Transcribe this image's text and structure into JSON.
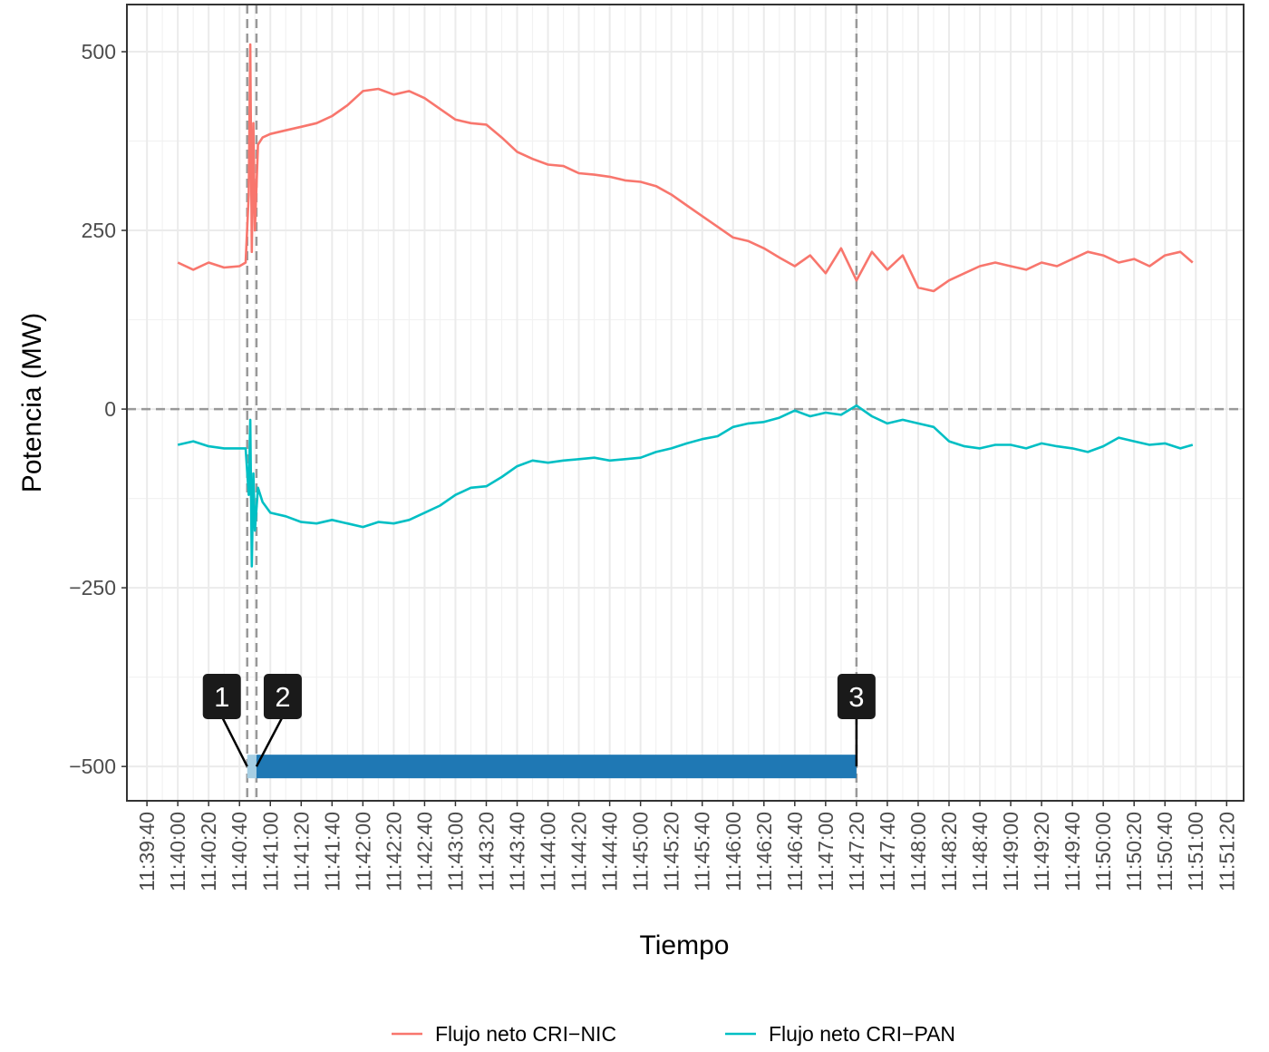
{
  "chart_data": {
    "type": "line",
    "x_label": "Tiempo",
    "y_label": "Potencia (MW)",
    "x": [
      "11:40:00",
      "11:40:10",
      "11:40:20",
      "11:40:30",
      "11:40:40",
      "11:40:44",
      "11:40:46",
      "11:40:47",
      "11:40:48",
      "11:40:49",
      "11:40:50",
      "11:40:52",
      "11:40:55",
      "11:41:00",
      "11:41:10",
      "11:41:20",
      "11:41:30",
      "11:41:40",
      "11:41:50",
      "11:42:00",
      "11:42:10",
      "11:42:20",
      "11:42:30",
      "11:42:40",
      "11:42:50",
      "11:43:00",
      "11:43:10",
      "11:43:20",
      "11:43:30",
      "11:43:40",
      "11:43:50",
      "11:44:00",
      "11:44:10",
      "11:44:20",
      "11:44:30",
      "11:44:40",
      "11:44:50",
      "11:45:00",
      "11:45:10",
      "11:45:20",
      "11:45:30",
      "11:45:40",
      "11:45:50",
      "11:46:00",
      "11:46:10",
      "11:46:20",
      "11:46:30",
      "11:46:40",
      "11:46:50",
      "11:47:00",
      "11:47:10",
      "11:47:20",
      "11:47:30",
      "11:47:40",
      "11:47:50",
      "11:48:00",
      "11:48:10",
      "11:48:20",
      "11:48:30",
      "11:48:40",
      "11:48:50",
      "11:49:00",
      "11:49:10",
      "11:49:20",
      "11:49:30",
      "11:49:40",
      "11:49:50",
      "11:50:00",
      "11:50:10",
      "11:50:20",
      "11:50:30",
      "11:50:40",
      "11:50:50",
      "11:50:58"
    ],
    "series": [
      {
        "name": "Flujo neto CRI−NIC",
        "color": "#F8766D",
        "values": [
          205,
          195,
          205,
          198,
          200,
          205,
          300,
          510,
          220,
          400,
          250,
          370,
          380,
          385,
          390,
          395,
          400,
          410,
          425,
          445,
          448,
          440,
          445,
          435,
          420,
          405,
          400,
          398,
          380,
          360,
          350,
          342,
          340,
          330,
          328,
          325,
          320,
          318,
          312,
          300,
          285,
          270,
          255,
          240,
          235,
          225,
          212,
          200,
          215,
          190,
          225,
          180,
          220,
          195,
          215,
          170,
          165,
          180,
          190,
          200,
          205,
          200,
          195,
          205,
          200,
          210,
          220,
          215,
          205,
          210,
          200,
          215,
          220,
          205
        ]
      },
      {
        "name": "Flujo neto CRI−PAN",
        "color": "#00BFC4",
        "values": [
          -50,
          -45,
          -52,
          -55,
          -55,
          -55,
          -120,
          -15,
          -220,
          -90,
          -170,
          -110,
          -130,
          -145,
          -150,
          -158,
          -160,
          -155,
          -160,
          -165,
          -158,
          -160,
          -155,
          -145,
          -135,
          -120,
          -110,
          -108,
          -95,
          -80,
          -72,
          -75,
          -72,
          -70,
          -68,
          -72,
          -70,
          -68,
          -60,
          -55,
          -48,
          -42,
          -38,
          -25,
          -20,
          -18,
          -12,
          -2,
          -10,
          -5,
          -8,
          5,
          -10,
          -20,
          -15,
          -20,
          -25,
          -45,
          -52,
          -55,
          -50,
          -50,
          -55,
          -48,
          -52,
          -55,
          -60,
          -52,
          -40,
          -45,
          -50,
          -48,
          -55,
          -50
        ]
      }
    ],
    "xlim": [
      "11:39:27",
      "11:51:31"
    ],
    "xticks": [
      "11:39:40",
      "11:40:00",
      "11:40:20",
      "11:40:40",
      "11:41:00",
      "11:41:20",
      "11:41:40",
      "11:42:00",
      "11:42:20",
      "11:42:40",
      "11:43:00",
      "11:43:20",
      "11:43:40",
      "11:44:00",
      "11:44:20",
      "11:44:40",
      "11:45:00",
      "11:45:20",
      "11:45:40",
      "11:46:00",
      "11:46:20",
      "11:46:40",
      "11:47:00",
      "11:47:20",
      "11:47:40",
      "11:48:00",
      "11:48:20",
      "11:48:40",
      "11:49:00",
      "11:49:20",
      "11:49:40",
      "11:50:00",
      "11:50:20",
      "11:50:40",
      "11:51:00",
      "11:51:20"
    ],
    "ylim": [
      -548,
      566
    ],
    "yticks": [
      {
        "value": -500,
        "label": "−500"
      },
      {
        "value": -250,
        "label": "−250"
      },
      0,
      250,
      500
    ],
    "grid": true,
    "hline": 0,
    "events": [
      {
        "label": "1",
        "x": "11:40:45"
      },
      {
        "label": "2",
        "x": "11:40:51"
      },
      {
        "label": "3",
        "x": "11:47:20"
      }
    ],
    "period_y": -500,
    "periods": [
      {
        "start": "11:40:45",
        "end": "11:40:51",
        "color": "#a6cee3"
      },
      {
        "start": "11:40:51",
        "end": "11:47:20",
        "color": "#1f78b4"
      }
    ],
    "legend": "bottom"
  }
}
